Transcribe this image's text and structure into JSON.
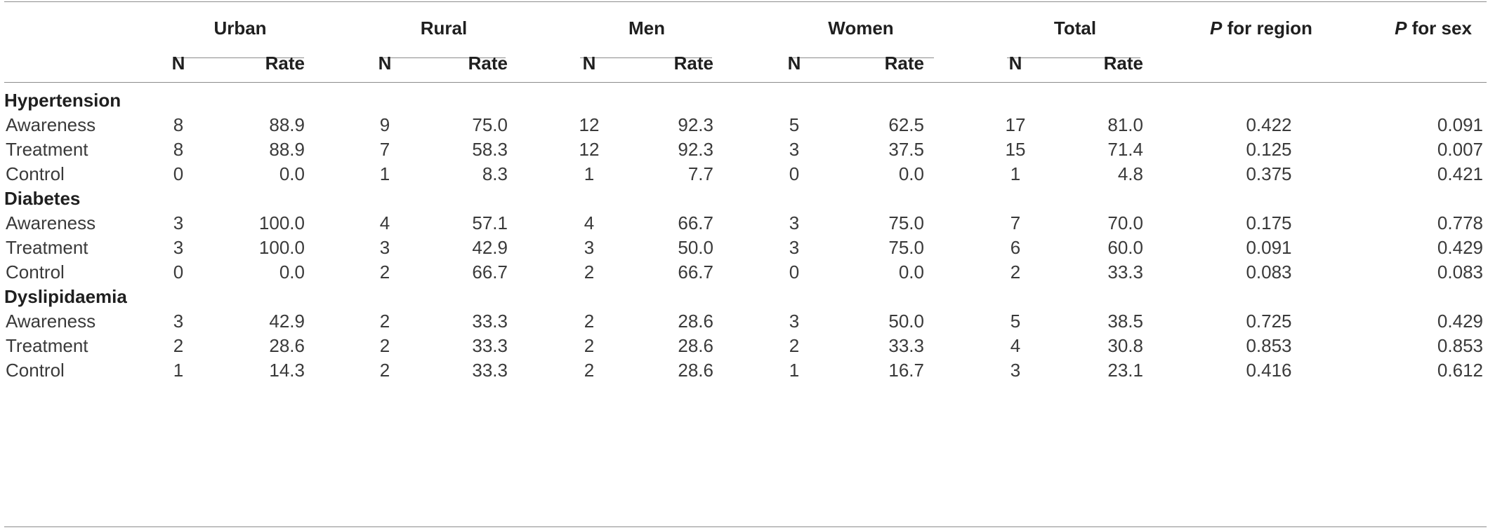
{
  "table": {
    "groups": [
      {
        "label": "Urban"
      },
      {
        "label": "Rural"
      },
      {
        "label": "Men"
      },
      {
        "label": "Women"
      },
      {
        "label": "Total"
      }
    ],
    "p_region": {
      "p": "P",
      "rest": " for region"
    },
    "p_sex": {
      "p": "P",
      "rest": " for sex"
    },
    "sub_n": "N",
    "sub_rate": "Rate",
    "sections": [
      {
        "title": "Hypertension",
        "rows": [
          {
            "label": "Awareness",
            "cells": [
              "8",
              "88.9",
              "9",
              "75.0",
              "12",
              "92.3",
              "5",
              "62.5",
              "17",
              "81.0",
              "0.422",
              "0.091"
            ]
          },
          {
            "label": "Treatment",
            "cells": [
              "8",
              "88.9",
              "7",
              "58.3",
              "12",
              "92.3",
              "3",
              "37.5",
              "15",
              "71.4",
              "0.125",
              "0.007"
            ]
          },
          {
            "label": "Control",
            "cells": [
              "0",
              "0.0",
              "1",
              "8.3",
              "1",
              "7.7",
              "0",
              "0.0",
              "1",
              "4.8",
              "0.375",
              "0.421"
            ]
          }
        ]
      },
      {
        "title": "Diabetes",
        "rows": [
          {
            "label": "Awareness",
            "cells": [
              "3",
              "100.0",
              "4",
              "57.1",
              "4",
              "66.7",
              "3",
              "75.0",
              "7",
              "70.0",
              "0.175",
              "0.778"
            ]
          },
          {
            "label": "Treatment",
            "cells": [
              "3",
              "100.0",
              "3",
              "42.9",
              "3",
              "50.0",
              "3",
              "75.0",
              "6",
              "60.0",
              "0.091",
              "0.429"
            ]
          },
          {
            "label": "Control",
            "cells": [
              "0",
              "0.0",
              "2",
              "66.7",
              "2",
              "66.7",
              "0",
              "0.0",
              "2",
              "33.3",
              "0.083",
              "0.083"
            ]
          }
        ]
      },
      {
        "title": "Dyslipidaemia",
        "rows": [
          {
            "label": "Awareness",
            "cells": [
              "3",
              "42.9",
              "2",
              "33.3",
              "2",
              "28.6",
              "3",
              "50.0",
              "5",
              "38.5",
              "0.725",
              "0.429"
            ]
          },
          {
            "label": "Treatment",
            "cells": [
              "2",
              "28.6",
              "2",
              "33.3",
              "2",
              "28.6",
              "2",
              "33.3",
              "4",
              "30.8",
              "0.853",
              "0.853"
            ]
          },
          {
            "label": "Control",
            "cells": [
              "1",
              "14.3",
              "2",
              "33.3",
              "2",
              "28.6",
              "1",
              "16.7",
              "3",
              "23.1",
              "0.416",
              "0.612"
            ]
          }
        ]
      }
    ]
  }
}
